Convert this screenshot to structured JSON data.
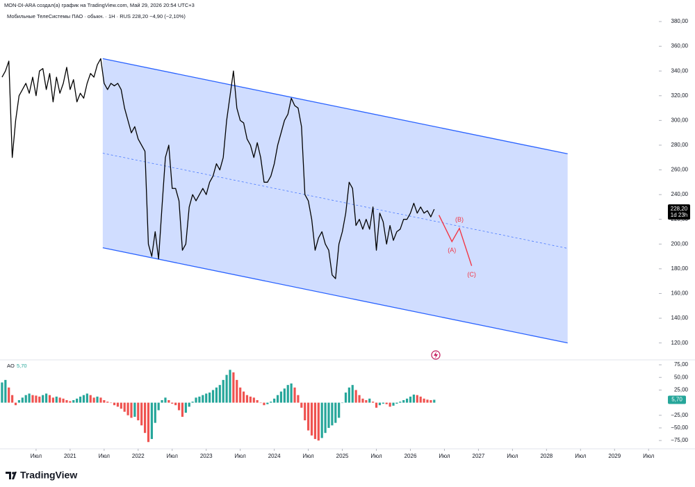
{
  "header": {
    "author_line": "MON-DI-ARA создал(а) график на TradingView.com, Май 29, 2026 20:54 UTC+3",
    "logo": "TradingView"
  },
  "chart_data": [
    {
      "type": "line",
      "title": "Мобильные ТелеСистемы ПАО · обыкн. · 1H · RUS  228,20  −4,90 (−2,10%)",
      "x": [
        2020,
        2020.05,
        2020.1,
        2020.15,
        2020.2,
        2020.25,
        2020.3,
        2020.35,
        2020.4,
        2020.45,
        2020.5,
        2020.55,
        2020.6,
        2020.65,
        2020.7,
        2020.75,
        2020.8,
        2020.85,
        2020.9,
        2020.95,
        2021,
        2021.05,
        2021.1,
        2021.15,
        2021.2,
        2021.25,
        2021.3,
        2021.35,
        2021.4,
        2021.45,
        2021.5,
        2021.55,
        2021.6,
        2021.65,
        2021.7,
        2021.75,
        2021.8,
        2021.85,
        2021.9,
        2021.95,
        2022,
        2022.05,
        2022.1,
        2022.15,
        2022.2,
        2022.25,
        2022.3,
        2022.35,
        2022.4,
        2022.45,
        2022.5,
        2022.55,
        2022.6,
        2022.65,
        2022.7,
        2022.75,
        2022.8,
        2022.85,
        2022.9,
        2022.95,
        2023,
        2023.05,
        2023.1,
        2023.15,
        2023.2,
        2023.25,
        2023.3,
        2023.35,
        2023.4,
        2023.45,
        2023.5,
        2023.55,
        2023.6,
        2023.65,
        2023.7,
        2023.75,
        2023.8,
        2023.85,
        2023.9,
        2023.95,
        2024,
        2024.05,
        2024.1,
        2024.15,
        2024.2,
        2024.25,
        2024.3,
        2024.35,
        2024.4,
        2024.45,
        2024.5,
        2024.55,
        2024.6,
        2024.65,
        2024.7,
        2024.75,
        2024.8,
        2024.85,
        2024.9,
        2024.95,
        2025,
        2025.05,
        2025.1,
        2025.15,
        2025.2,
        2025.25,
        2025.3,
        2025.35,
        2025.4,
        2025.45,
        2025.5,
        2025.55,
        2025.6,
        2025.65,
        2025.7,
        2025.75,
        2025.8,
        2025.85,
        2025.9,
        2025.95,
        2026,
        2026.05,
        2026.1,
        2026.15,
        2026.2,
        2026.25,
        2026.3,
        2026.35
      ],
      "series": [
        {
          "color": "#000000",
          "values": [
            335,
            340,
            348,
            270,
            300,
            320,
            325,
            330,
            322,
            335,
            320,
            340,
            342,
            325,
            338,
            315,
            335,
            322,
            330,
            343,
            325,
            333,
            315,
            322,
            318,
            330,
            338,
            335,
            345,
            350,
            330,
            325,
            330,
            328,
            330,
            325,
            310,
            300,
            290,
            295,
            285,
            280,
            275,
            200,
            190,
            210,
            188,
            230,
            270,
            280,
            245,
            245,
            235,
            195,
            200,
            230,
            240,
            235,
            240,
            245,
            240,
            250,
            255,
            265,
            260,
            270,
            300,
            320,
            340,
            310,
            300,
            298,
            285,
            280,
            270,
            282,
            270,
            250,
            250,
            255,
            265,
            280,
            290,
            300,
            305,
            318,
            312,
            310,
            295,
            240,
            235,
            220,
            195,
            205,
            210,
            200,
            195,
            175,
            172,
            200,
            210,
            225,
            250,
            245,
            215,
            220,
            212,
            220,
            212,
            230,
            195,
            225,
            218,
            200,
            215,
            203,
            210,
            212,
            220,
            220,
            225,
            233,
            225,
            230,
            225,
            227,
            222,
            228.2
          ]
        }
      ],
      "xlim": [
        2019.97,
        2029.62
      ],
      "ylim": [
        108,
        389
      ],
      "yticks": [
        {
          "value": 120,
          "label": "120,00"
        },
        {
          "value": 140,
          "label": "140,00"
        },
        {
          "value": 160,
          "label": "160,00"
        },
        {
          "value": 180,
          "label": "180,00"
        },
        {
          "value": 200,
          "label": "200,00"
        },
        {
          "value": 220,
          "label": "220,00"
        },
        {
          "value": 240,
          "label": "240,00"
        },
        {
          "value": 260,
          "label": "260,00"
        },
        {
          "value": 280,
          "label": "280,00"
        },
        {
          "value": 300,
          "label": "300,00"
        },
        {
          "value": 320,
          "label": "320,00"
        },
        {
          "value": 340,
          "label": "340,00"
        },
        {
          "value": 360,
          "label": "360,00"
        },
        {
          "value": 380,
          "label": "380,00"
        }
      ],
      "grid": false,
      "last_value": {
        "value": 228.2,
        "label": "228,20"
      },
      "countdown": "1d 23h",
      "channel": {
        "x": [
          2021.48,
          2028.31
        ],
        "upper": [
          350,
          273
        ],
        "lower": [
          197,
          120
        ],
        "color": "#2962ff",
        "fill": "rgba(41,98,255,0.22)"
      },
      "projection": {
        "x": [
          2026.42,
          2026.61,
          2026.72,
          2026.9
        ],
        "values": [
          223.4,
          202,
          212.7,
          182.4
        ],
        "labels": [
          null,
          "(A)",
          "(B)",
          "(C)"
        ],
        "color": "#f23645"
      }
    },
    {
      "type": "bar",
      "title": "AO",
      "x": [
        2020,
        2020.05,
        2020.1,
        2020.15,
        2020.2,
        2020.25,
        2020.3,
        2020.35,
        2020.4,
        2020.45,
        2020.5,
        2020.55,
        2020.6,
        2020.65,
        2020.7,
        2020.75,
        2020.8,
        2020.85,
        2020.9,
        2020.95,
        2021,
        2021.05,
        2021.1,
        2021.15,
        2021.2,
        2021.25,
        2021.3,
        2021.35,
        2021.4,
        2021.45,
        2021.5,
        2021.55,
        2021.6,
        2021.65,
        2021.7,
        2021.75,
        2021.8,
        2021.85,
        2021.9,
        2021.95,
        2022,
        2022.05,
        2022.1,
        2022.15,
        2022.2,
        2022.25,
        2022.3,
        2022.35,
        2022.4,
        2022.45,
        2022.5,
        2022.55,
        2022.6,
        2022.65,
        2022.7,
        2022.75,
        2022.8,
        2022.85,
        2022.9,
        2022.95,
        2023,
        2023.05,
        2023.1,
        2023.15,
        2023.2,
        2023.25,
        2023.3,
        2023.35,
        2023.4,
        2023.45,
        2023.5,
        2023.55,
        2023.6,
        2023.65,
        2023.7,
        2023.75,
        2023.8,
        2023.85,
        2023.9,
        2023.95,
        2024,
        2024.05,
        2024.1,
        2024.15,
        2024.2,
        2024.25,
        2024.3,
        2024.35,
        2024.4,
        2024.45,
        2024.5,
        2024.55,
        2024.6,
        2024.65,
        2024.7,
        2024.75,
        2024.8,
        2024.85,
        2024.9,
        2024.95,
        2025,
        2025.05,
        2025.1,
        2025.15,
        2025.2,
        2025.25,
        2025.3,
        2025.35,
        2025.4,
        2025.45,
        2025.5,
        2025.55,
        2025.6,
        2025.65,
        2025.7,
        2025.75,
        2025.8,
        2025.85,
        2025.9,
        2025.95,
        2026,
        2026.05,
        2026.1,
        2026.15,
        2026.2,
        2026.25,
        2026.3,
        2026.35
      ],
      "series": [
        {
          "color_up": "#26a69a",
          "color_down": "#ef5350",
          "values": [
            40,
            45,
            30,
            15,
            -5,
            5,
            10,
            15,
            18,
            15,
            14,
            12,
            15,
            18,
            15,
            10,
            12,
            10,
            8,
            5,
            3,
            5,
            8,
            12,
            15,
            18,
            15,
            10,
            12,
            10,
            5,
            2,
            0,
            -5,
            -8,
            -12,
            -18,
            -25,
            -30,
            -28,
            -35,
            -45,
            -60,
            -78,
            -72,
            -40,
            -15,
            5,
            10,
            5,
            -2,
            -5,
            -15,
            -28,
            -20,
            -8,
            2,
            10,
            12,
            15,
            18,
            20,
            25,
            30,
            35,
            45,
            55,
            65,
            60,
            45,
            30,
            22,
            15,
            12,
            10,
            5,
            0,
            -5,
            -3,
            2,
            8,
            15,
            22,
            28,
            35,
            38,
            30,
            15,
            -10,
            -35,
            -55,
            -65,
            -72,
            -75,
            -70,
            -60,
            -50,
            -45,
            -40,
            -30,
            0,
            20,
            30,
            35,
            25,
            15,
            8,
            5,
            8,
            2,
            -10,
            -5,
            -2,
            -3,
            -8,
            -6,
            -2,
            2,
            5,
            8,
            12,
            16,
            15,
            12,
            8,
            6,
            5,
            5.7
          ]
        }
      ],
      "xlim": [
        2019.97,
        2029.62
      ],
      "ylim": [
        -90,
        82
      ],
      "yticks": [
        {
          "value": 75,
          "label": "75,00"
        },
        {
          "value": 50,
          "label": "50,00"
        },
        {
          "value": 25,
          "label": "25,00"
        },
        {
          "value": -25,
          "label": "−25,00"
        },
        {
          "value": -50,
          "label": "−50,00"
        },
        {
          "value": -75,
          "label": "−75,00"
        }
      ],
      "xticks": [
        {
          "value": 2020.5,
          "label": "Июл"
        },
        2021,
        {
          "value": 2021.5,
          "label": "Июл"
        },
        2022,
        {
          "value": 2022.5,
          "label": "Июл"
        },
        2023,
        {
          "value": 2023.5,
          "label": "Июл"
        },
        2024,
        {
          "value": 2024.5,
          "label": "Июл"
        },
        2025,
        {
          "value": 2025.5,
          "label": "Июл"
        },
        2026,
        {
          "value": 2026.5,
          "label": "Июл"
        },
        2027,
        {
          "value": 2027.5,
          "label": "Июл"
        },
        2028,
        {
          "value": 2028.5,
          "label": "Июл"
        },
        2029,
        {
          "value": 2029.5,
          "label": "Июл"
        }
      ],
      "last_value": {
        "value": 5.7,
        "label": "5,70"
      },
      "last_color": "#26a69a"
    }
  ]
}
